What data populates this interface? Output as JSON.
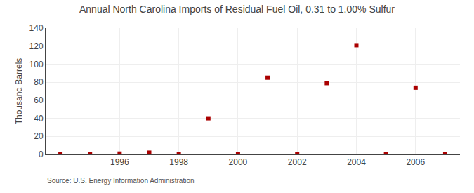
{
  "chart_data": {
    "type": "scatter",
    "title": "Annual North Carolina Imports of Residual Fuel Oil, 0.31 to 1.00% Sulfur",
    "ylabel": "Thousand Barrels",
    "annotations": [
      "Source: U.S. Energy Information Administration"
    ],
    "x": [
      1994,
      1995,
      1996,
      1997,
      1998,
      1999,
      2000,
      2001,
      2002,
      2003,
      2004,
      2005,
      2006,
      2007
    ],
    "values": [
      0,
      0,
      1,
      2,
      0,
      40,
      0,
      85,
      0,
      79,
      121,
      0,
      74,
      0
    ],
    "color": "#aa0000",
    "marker": "square",
    "xlim": [
      1993.5,
      2007.5
    ],
    "ylim": [
      0,
      140
    ],
    "xticks": [
      1996,
      1998,
      2000,
      2002,
      2004,
      2006
    ],
    "yticks": [
      0,
      20,
      40,
      60,
      80,
      100,
      120,
      140
    ],
    "grid": true
  }
}
